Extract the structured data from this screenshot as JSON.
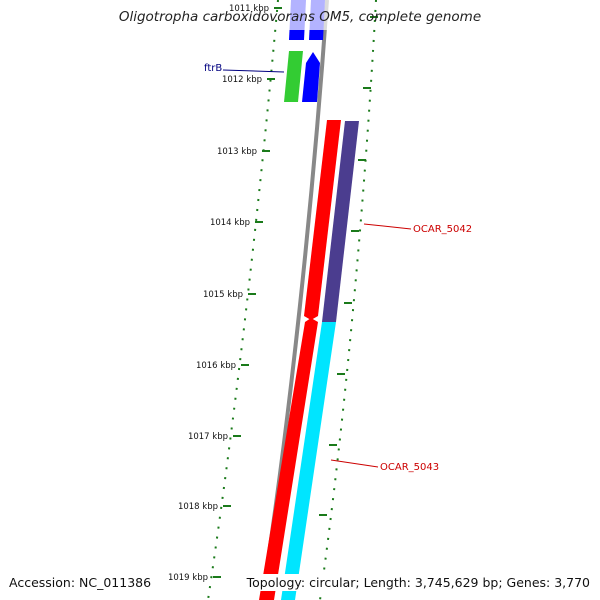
{
  "title": "Oligotropha carboxidovorans OM5, complete genome",
  "footer": {
    "accession": "Accession: NC_011386",
    "summary": "Topology: circular; Length: 3,745,629 bp; Genes: 3,770"
  },
  "ruler": {
    "ticks": [
      {
        "label": "1011 kbp"
      },
      {
        "label": "1012 kbp"
      },
      {
        "label": "1013 kbp"
      },
      {
        "label": "1014 kbp"
      },
      {
        "label": "1015 kbp"
      },
      {
        "label": "1016 kbp"
      },
      {
        "label": "1017 kbp"
      },
      {
        "label": "1018 kbp"
      },
      {
        "label": "1019 kbp"
      }
    ]
  },
  "genes": [
    {
      "label": "ftrB"
    },
    {
      "label": "OCAR_5042"
    },
    {
      "label": "OCAR_5043"
    }
  ],
  "colors": {
    "backbone": "#888888",
    "tick": "#1a7a1a",
    "cds_reverse": "#ff0000",
    "cds_forward_blue": "#0000ff",
    "cds_green": "#33cc33",
    "cog_purple": "#4b3d8f",
    "cog_cyan": "#00e5ff",
    "gene_label_red": "#cc0000",
    "gene_label_blue": "#000080"
  }
}
